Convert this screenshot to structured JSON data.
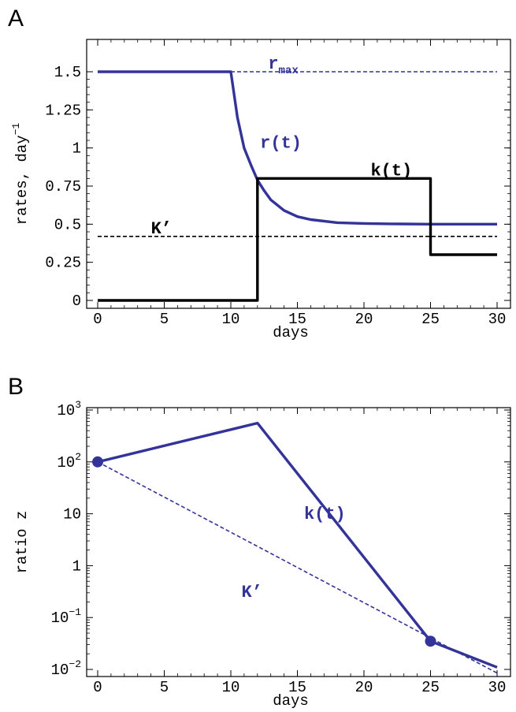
{
  "chart_data": [
    {
      "panel": "A",
      "type": "line",
      "xlabel": "days",
      "ylabel": "rates, day",
      "ylabel_exponent": "−1",
      "xlim": [
        0,
        30
      ],
      "ylim": [
        0,
        1.5
      ],
      "x_ticks": [
        "0",
        "5",
        "10",
        "15",
        "20",
        "25",
        "30"
      ],
      "y_ticks": [
        "0",
        "0.25",
        "0.5",
        "0.75",
        "1",
        "1.25",
        "1.5"
      ],
      "colors": {
        "blue": "#333399",
        "black": "#000000"
      },
      "series": [
        {
          "name": "r(t)",
          "color": "#333399",
          "style": "solid",
          "x": [
            0,
            10,
            10.5,
            11,
            11.5,
            12,
            12.5,
            13,
            14,
            15,
            16,
            18,
            20,
            22,
            25,
            30
          ],
          "y": [
            1.5,
            1.5,
            1.2,
            1.0,
            0.89,
            0.79,
            0.72,
            0.66,
            0.59,
            0.55,
            0.53,
            0.51,
            0.505,
            0.502,
            0.5,
            0.5
          ]
        },
        {
          "name": "k(t)",
          "color": "#000000",
          "style": "solid",
          "x": [
            0,
            12,
            12,
            25,
            25,
            30
          ],
          "y": [
            0,
            0,
            0.8,
            0.8,
            0.3,
            0.3
          ]
        },
        {
          "name": "r_max",
          "color": "#333399",
          "style": "dashed",
          "x": [
            10,
            30
          ],
          "y": [
            1.5,
            1.5
          ]
        },
        {
          "name": "K'",
          "color": "#000000",
          "style": "dashed",
          "x": [
            0,
            30
          ],
          "y": [
            0.42,
            0.42
          ]
        }
      ],
      "annotations": [
        {
          "text": "r",
          "sub": "max",
          "x": 12.8,
          "y": 1.52,
          "color": "#333399"
        },
        {
          "text": "r(t)",
          "x": 12.2,
          "y": 1.0,
          "color": "#333399"
        },
        {
          "text": "k(t)",
          "x": 20.5,
          "y": 0.82,
          "color": "#000000"
        },
        {
          "text": "K’",
          "x": 4.0,
          "y": 0.44,
          "color": "#000000"
        }
      ]
    },
    {
      "panel": "B",
      "type": "line",
      "xlabel": "days",
      "ylabel": "ratio z",
      "yscale": "log",
      "xlim": [
        0,
        30
      ],
      "ylim": [
        0.01,
        1000
      ],
      "x_ticks": [
        "0",
        "5",
        "10",
        "15",
        "20",
        "25",
        "30"
      ],
      "y_ticks": [
        {
          "base": "10",
          "exp": "3"
        },
        {
          "base": "10",
          "exp": "2"
        },
        {
          "base": "10",
          "exp": ""
        },
        {
          "base": "1",
          "exp": ""
        },
        {
          "base": "10",
          "exp": "−1"
        },
        {
          "base": "10",
          "exp": "−2"
        }
      ],
      "colors": {
        "blue": "#333399"
      },
      "series": [
        {
          "name": "k(t)",
          "color": "#333399",
          "style": "solid",
          "x": [
            0,
            10,
            12,
            25,
            30
          ],
          "y": [
            100,
            420,
            560,
            0.035,
            0.011
          ]
        },
        {
          "name": "K'",
          "color": "#333399",
          "style": "dashed",
          "x": [
            0,
            30
          ],
          "y": [
            100,
            0.0085
          ]
        }
      ],
      "points": [
        {
          "x": 0,
          "y": 100
        },
        {
          "x": 25,
          "y": 0.035
        }
      ],
      "annotations": [
        {
          "text": "k(t)",
          "x": 15.5,
          "y": 8,
          "color": "#333399"
        },
        {
          "text": "K’",
          "x": 10.8,
          "y": 0.25,
          "color": "#333399"
        }
      ]
    }
  ]
}
